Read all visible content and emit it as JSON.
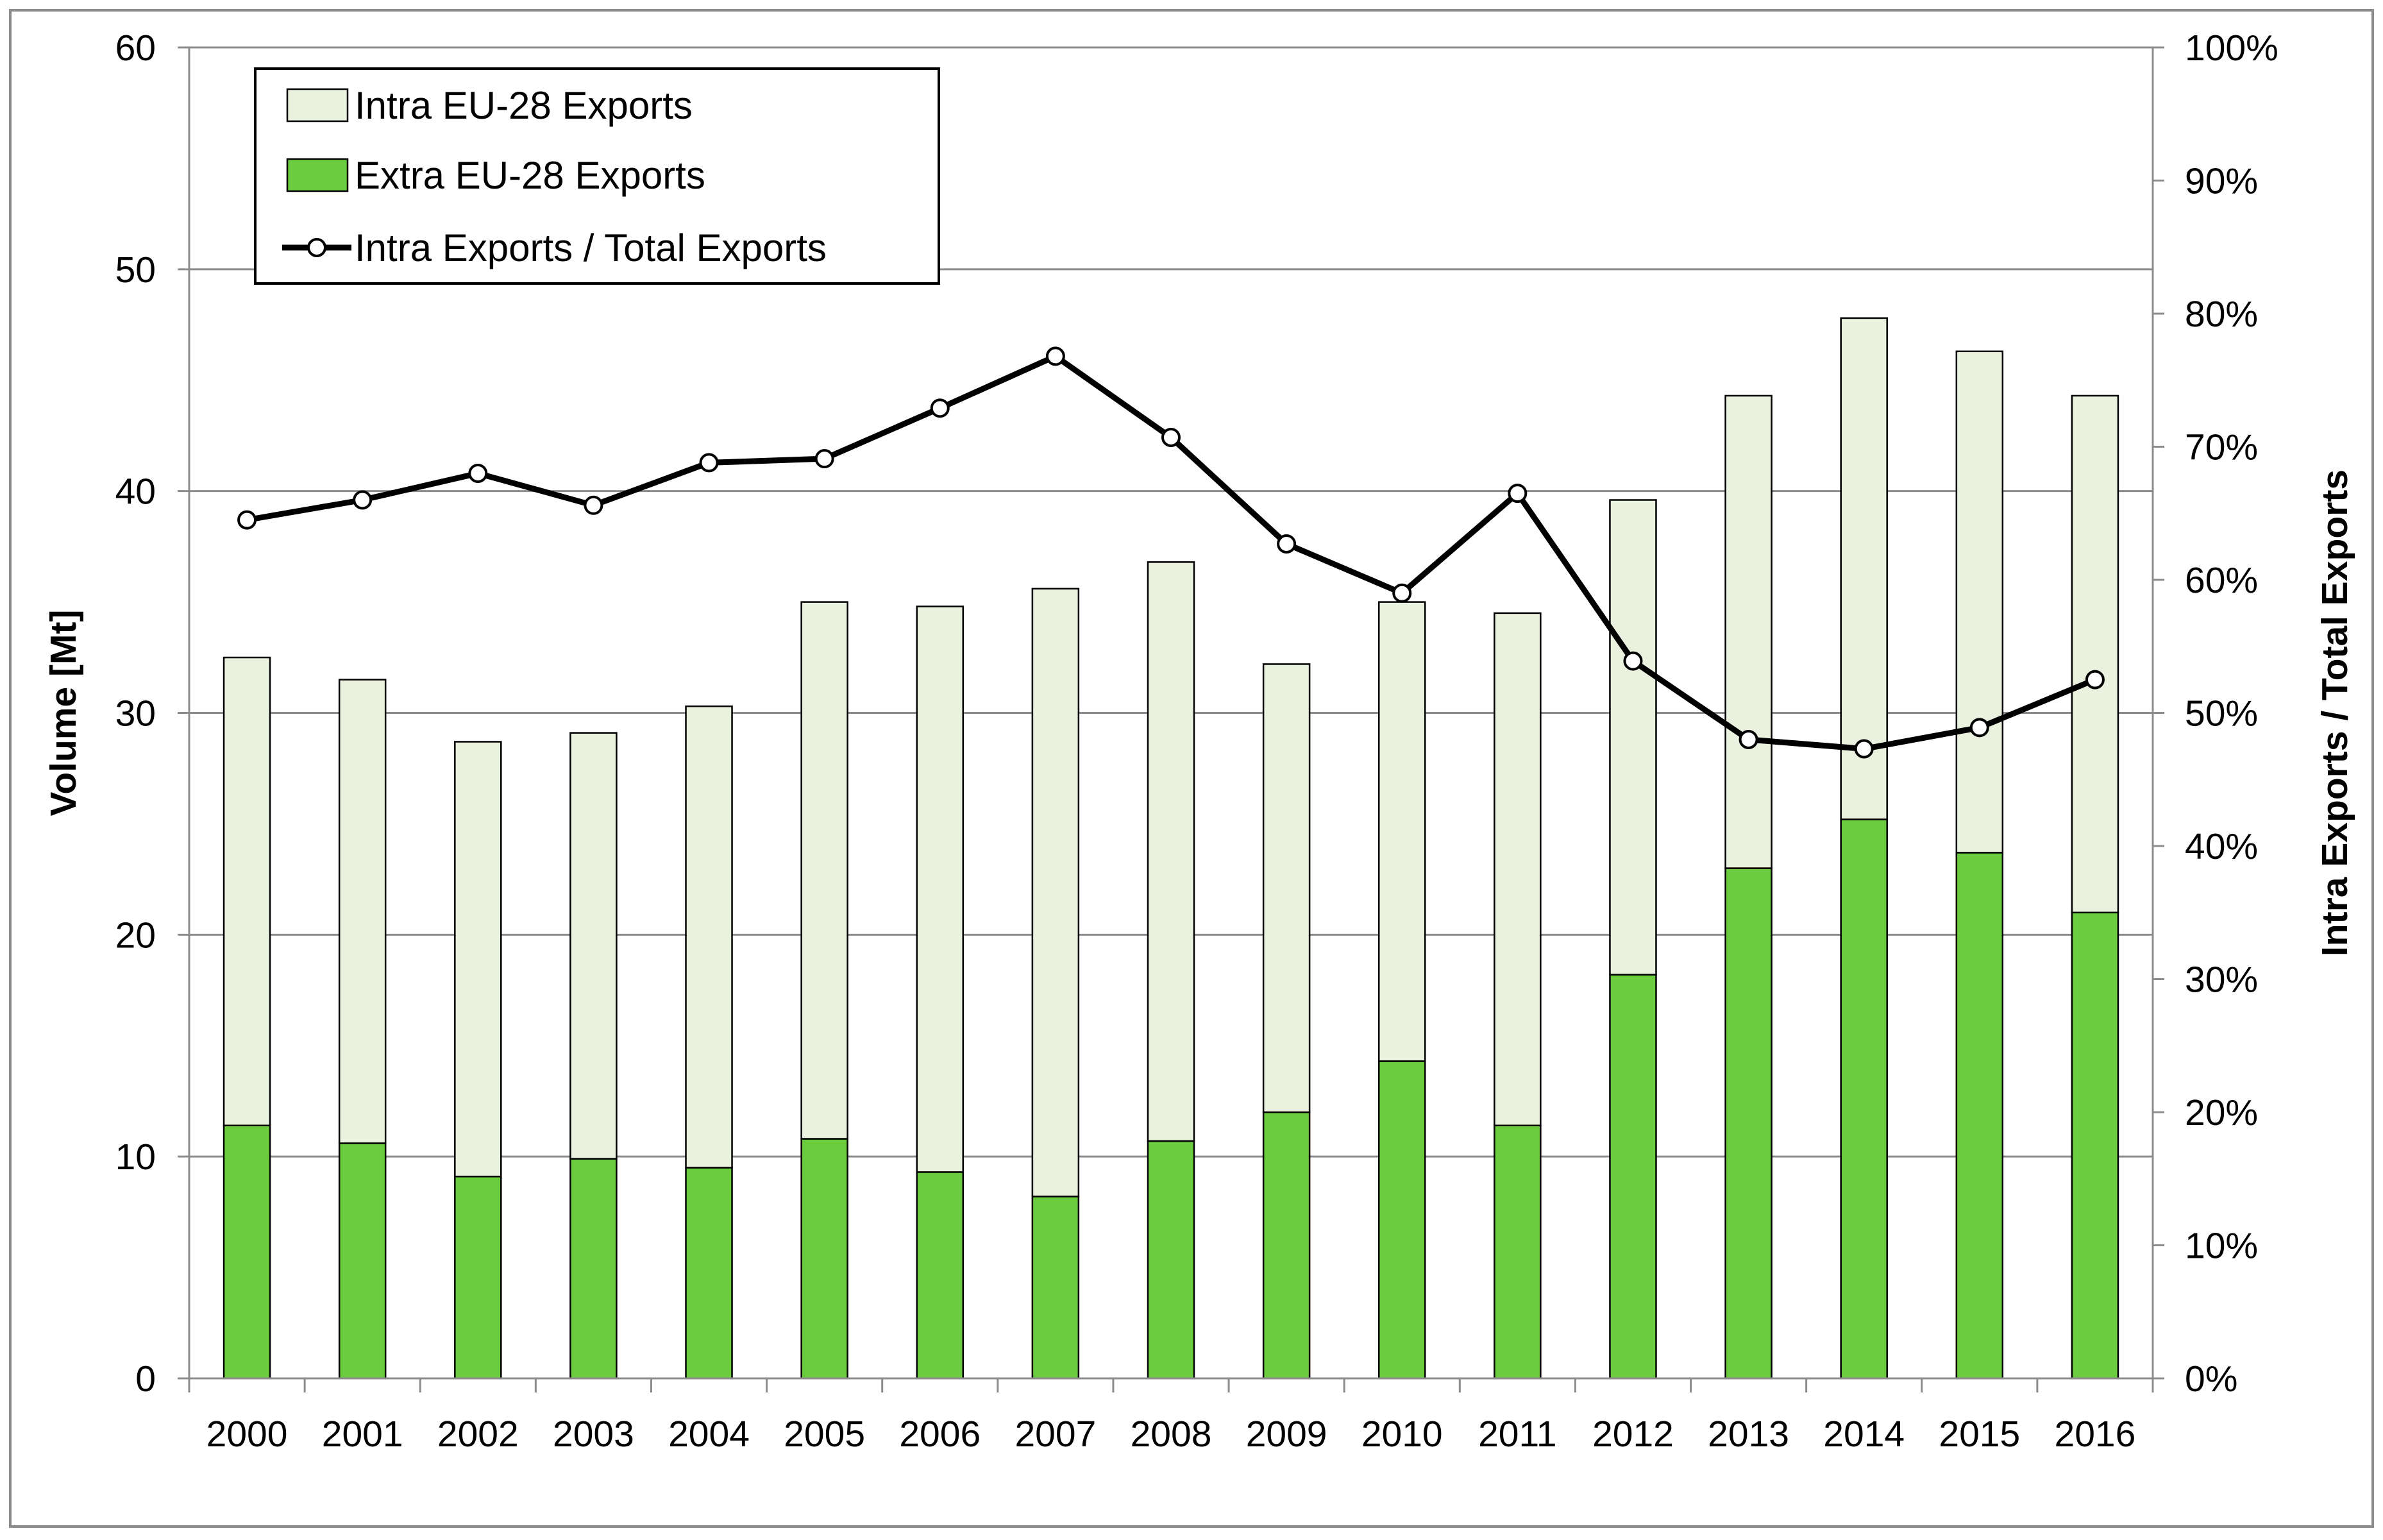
{
  "chart_data": {
    "type": "bar",
    "stacked": true,
    "title": "",
    "categories": [
      "2000",
      "2001",
      "2002",
      "2003",
      "2004",
      "2005",
      "2006",
      "2007",
      "2008",
      "2009",
      "2010",
      "2011",
      "2012",
      "2013",
      "2014",
      "2015",
      "2016"
    ],
    "series": [
      {
        "name": "Extra EU-28 Exports",
        "type": "bar",
        "axis": "left",
        "color": "#6ACC3E",
        "values": [
          11.4,
          10.6,
          9.1,
          9.9,
          9.5,
          10.8,
          9.3,
          8.2,
          10.7,
          12.0,
          14.3,
          11.4,
          18.2,
          23.0,
          25.2,
          23.7,
          21.0
        ]
      },
      {
        "name": "Intra EU-28 Exports",
        "type": "bar",
        "axis": "left",
        "color": "#EAF1DE",
        "values": [
          21.1,
          20.9,
          19.6,
          19.2,
          20.8,
          24.2,
          25.5,
          27.4,
          26.1,
          20.2,
          20.7,
          23.1,
          21.4,
          21.3,
          22.6,
          22.6,
          23.3
        ]
      },
      {
        "name": "Intra Exports / Total Exports",
        "type": "line",
        "axis": "right",
        "color": "#000000",
        "values": [
          64.5,
          66.0,
          68.0,
          65.6,
          68.8,
          69.1,
          72.9,
          76.8,
          70.7,
          62.7,
          59.0,
          66.5,
          53.9,
          48.0,
          47.3,
          48.9,
          52.5
        ]
      }
    ],
    "ylabel": "Volume [Mt]",
    "ylim": [
      0,
      60
    ],
    "yticks": [
      "0",
      "10",
      "20",
      "30",
      "40",
      "50",
      "60"
    ],
    "y2label": "Intra Exports / Total Exports",
    "y2lim": [
      0,
      100
    ],
    "y2ticks": [
      "0%",
      "10%",
      "20%",
      "30%",
      "40%",
      "50%",
      "60%",
      "70%",
      "80%",
      "90%",
      "100%"
    ],
    "legend": {
      "placement": "top-left",
      "entries": [
        "Intra EU-28 Exports",
        "Extra EU-28 Exports",
        "Intra Exports / Total Exports"
      ]
    },
    "grid": true
  }
}
